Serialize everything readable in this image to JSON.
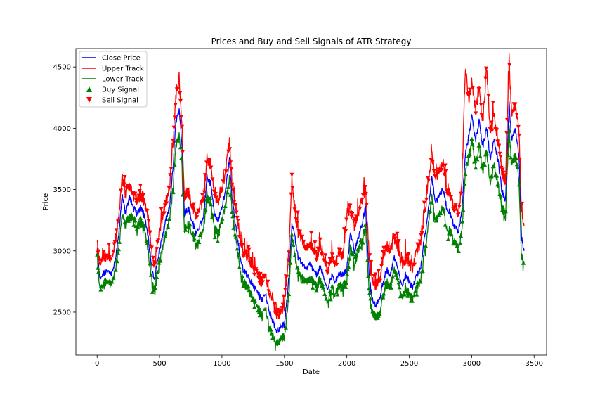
{
  "chart_data": {
    "type": "line",
    "title": "Prices and Buy and Sell Signals of ATR Strategy",
    "xlabel": "Date",
    "ylabel": "Price",
    "xlim": [
      -170,
      3600
    ],
    "ylim": [
      2150,
      4650
    ],
    "x_ticks": [
      0,
      500,
      1000,
      1500,
      2000,
      2500,
      3000,
      3500
    ],
    "y_ticks": [
      2500,
      3000,
      3500,
      4000,
      4500
    ],
    "grid": false,
    "legend_position": "top-left",
    "colors": {
      "close": "#0000ff",
      "upper": "#ff0000",
      "lower": "#008000",
      "buy": "#008000",
      "sell": "#ff0000"
    },
    "legend": [
      {
        "label": "Close Price",
        "kind": "line",
        "color": "#0000ff"
      },
      {
        "label": "Upper Track",
        "kind": "line",
        "color": "#ff0000"
      },
      {
        "label": "Lower Track",
        "kind": "line",
        "color": "#008000"
      },
      {
        "label": "Buy Signal",
        "kind": "marker-up",
        "color": "#008000"
      },
      {
        "label": "Sell Signal",
        "kind": "marker-down",
        "color": "#ff0000"
      }
    ],
    "x": [
      0,
      20,
      50,
      80,
      110,
      140,
      170,
      200,
      230,
      260,
      290,
      320,
      350,
      380,
      410,
      440,
      460,
      490,
      520,
      550,
      580,
      610,
      630,
      660,
      680,
      700,
      730,
      760,
      790,
      820,
      850,
      880,
      910,
      940,
      970,
      1000,
      1030,
      1060,
      1080,
      1110,
      1140,
      1170,
      1200,
      1230,
      1260,
      1290,
      1320,
      1350,
      1380,
      1410,
      1440,
      1470,
      1500,
      1530,
      1560,
      1580,
      1610,
      1640,
      1670,
      1700,
      1730,
      1760,
      1790,
      1820,
      1850,
      1880,
      1910,
      1940,
      1970,
      2000,
      2030,
      2060,
      2090,
      2120,
      2150,
      2180,
      2200,
      2230,
      2260,
      2290,
      2320,
      2350,
      2380,
      2410,
      2440,
      2470,
      2500,
      2530,
      2560,
      2590,
      2620,
      2650,
      2680,
      2710,
      2740,
      2770,
      2800,
      2830,
      2860,
      2890,
      2920,
      2950,
      2980,
      3000,
      3030,
      3060,
      3090,
      3120,
      3150,
      3180,
      3210,
      3240,
      3270,
      3300,
      3320,
      3350,
      3380,
      3400,
      3420
    ],
    "series": [
      {
        "name": "Close Price",
        "values": [
          3020,
          2780,
          2810,
          2850,
          2800,
          2900,
          3100,
          3450,
          3300,
          3450,
          3350,
          3300,
          3360,
          3280,
          3100,
          2850,
          2780,
          2950,
          3100,
          3250,
          3350,
          3700,
          4050,
          4150,
          3850,
          3300,
          3350,
          3250,
          3150,
          3200,
          3250,
          3600,
          3550,
          3300,
          3250,
          3350,
          3500,
          3750,
          3450,
          3200,
          3000,
          2850,
          2800,
          2750,
          2700,
          2650,
          2600,
          2650,
          2500,
          2420,
          2350,
          2380,
          2400,
          2700,
          3200,
          3150,
          2950,
          2900,
          2850,
          2900,
          2850,
          2800,
          2880,
          2750,
          2700,
          2800,
          2750,
          2820,
          2800,
          2850,
          3150,
          3000,
          3100,
          3200,
          3350,
          2800,
          2600,
          2550,
          2600,
          2750,
          2850,
          2800,
          2950,
          2850,
          2700,
          2800,
          2750,
          2700,
          2800,
          2850,
          3100,
          3300,
          3600,
          3400,
          3450,
          3500,
          3350,
          3300,
          3200,
          3150,
          3300,
          3800,
          3950,
          4100,
          3900,
          4050,
          3850,
          4000,
          3750,
          3900,
          3750,
          3500,
          3400,
          4200,
          3900,
          4000,
          3750,
          3100,
          3000
        ]
      },
      {
        "name": "Upper Track",
        "values": [
          3060,
          2900,
          2950,
          2960,
          2900,
          3050,
          3250,
          3600,
          3450,
          3550,
          3450,
          3420,
          3450,
          3400,
          3250,
          2980,
          2900,
          3100,
          3250,
          3400,
          3500,
          3900,
          4250,
          4380,
          4000,
          3450,
          3480,
          3380,
          3300,
          3350,
          3400,
          3750,
          3700,
          3450,
          3400,
          3500,
          3650,
          3900,
          3580,
          3350,
          3150,
          3000,
          2950,
          2900,
          2850,
          2800,
          2750,
          2800,
          2650,
          2580,
          2480,
          2500,
          2550,
          2900,
          3550,
          3350,
          3150,
          3100,
          3000,
          3050,
          3000,
          2950,
          3050,
          2900,
          2850,
          2950,
          2900,
          3000,
          2950,
          3300,
          3350,
          3200,
          3300,
          3400,
          3500,
          2950,
          2750,
          2700,
          2750,
          2950,
          3050,
          3000,
          3100,
          3000,
          2850,
          2950,
          2900,
          2850,
          3000,
          3050,
          3300,
          3500,
          3800,
          3600,
          3650,
          3700,
          3500,
          3450,
          3350,
          3300,
          3500,
          4500,
          4200,
          4350,
          4150,
          4300,
          4050,
          4500,
          3950,
          4100,
          3900,
          3650,
          3550,
          4550,
          4100,
          4200,
          3950,
          3300,
          3200
        ]
      },
      {
        "name": "Lower Track",
        "values": [
          2960,
          2700,
          2730,
          2760,
          2720,
          2820,
          3000,
          3300,
          3200,
          3300,
          3250,
          3200,
          3250,
          3180,
          2980,
          2760,
          2700,
          2850,
          3000,
          3150,
          3250,
          3550,
          3850,
          3950,
          3700,
          3180,
          3230,
          3150,
          3050,
          3100,
          3150,
          3450,
          3400,
          3180,
          3150,
          3250,
          3380,
          3600,
          3350,
          3100,
          2900,
          2750,
          2700,
          2650,
          2580,
          2530,
          2480,
          2530,
          2380,
          2300,
          2260,
          2280,
          2300,
          2580,
          3100,
          3000,
          2820,
          2780,
          2750,
          2780,
          2750,
          2700,
          2780,
          2650,
          2600,
          2700,
          2650,
          2720,
          2700,
          2750,
          3050,
          2900,
          3000,
          3080,
          3200,
          2650,
          2480,
          2450,
          2480,
          2650,
          2750,
          2700,
          2850,
          2750,
          2600,
          2700,
          2650,
          2600,
          2700,
          2750,
          2980,
          3180,
          3450,
          3250,
          3300,
          3350,
          3200,
          3150,
          3080,
          3000,
          3150,
          3650,
          3780,
          3900,
          3700,
          3850,
          3650,
          3800,
          3550,
          3700,
          3550,
          3350,
          3280,
          4000,
          3700,
          3800,
          3550,
          2950,
          2900
        ]
      }
    ]
  }
}
